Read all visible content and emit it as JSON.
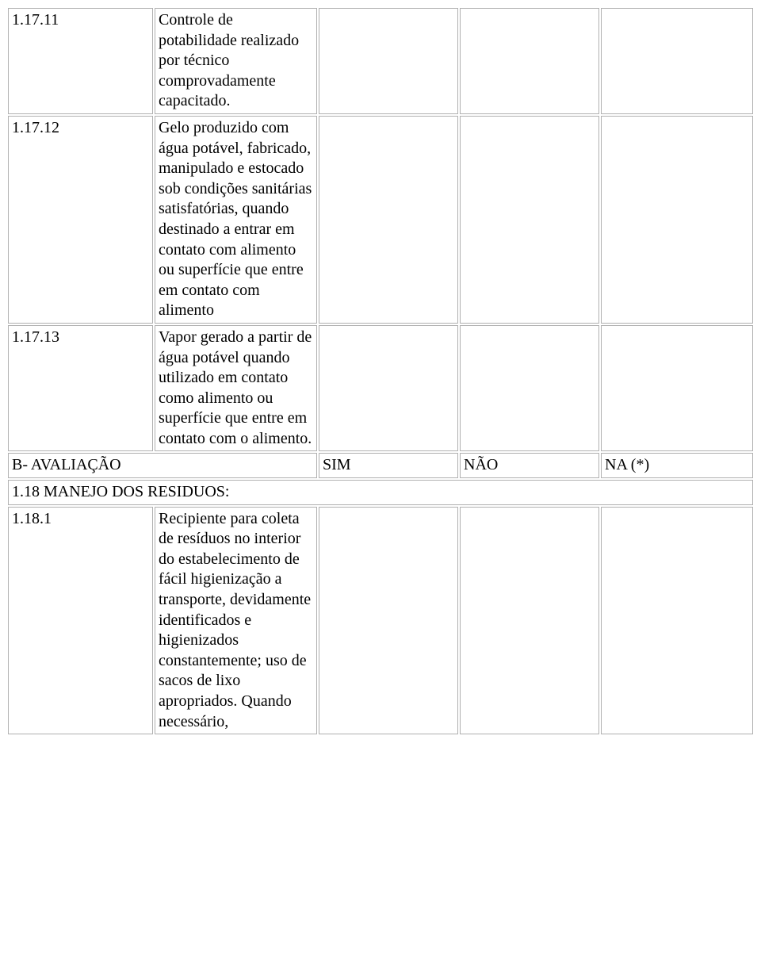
{
  "rows": {
    "r1": {
      "num": "1.17.11",
      "desc": "Controle de potabilidade realizado por técnico comprovadamente capacitado."
    },
    "r2": {
      "num": "1.17.12",
      "desc": "Gelo produzido com água potável, fabricado, manipulado e estocado sob condições sanitárias satisfatórias, quando destinado a entrar em contato com alimento ou superfície que entre em contato com alimento"
    },
    "r3": {
      "num": "1.17.13",
      "desc": "Vapor gerado a partir de água potável quando utilizado em contato como alimento ou superfície que entre em contato com o alimento."
    },
    "header": {
      "label": "B- AVALIAÇÃO",
      "sim": "SIM",
      "nao": "NÃO",
      "na": "NA (*)"
    },
    "section": {
      "title": "1.18 MANEJO DOS RESIDUOS:"
    },
    "r4": {
      "num": "1.18.1",
      "desc": "Recipiente para coleta de resíduos no interior do estabelecimento de fácil higienização a transporte, devidamente identificados e higienizados constantemente; uso de sacos de lixo apropriados. Quando necessário,"
    }
  }
}
